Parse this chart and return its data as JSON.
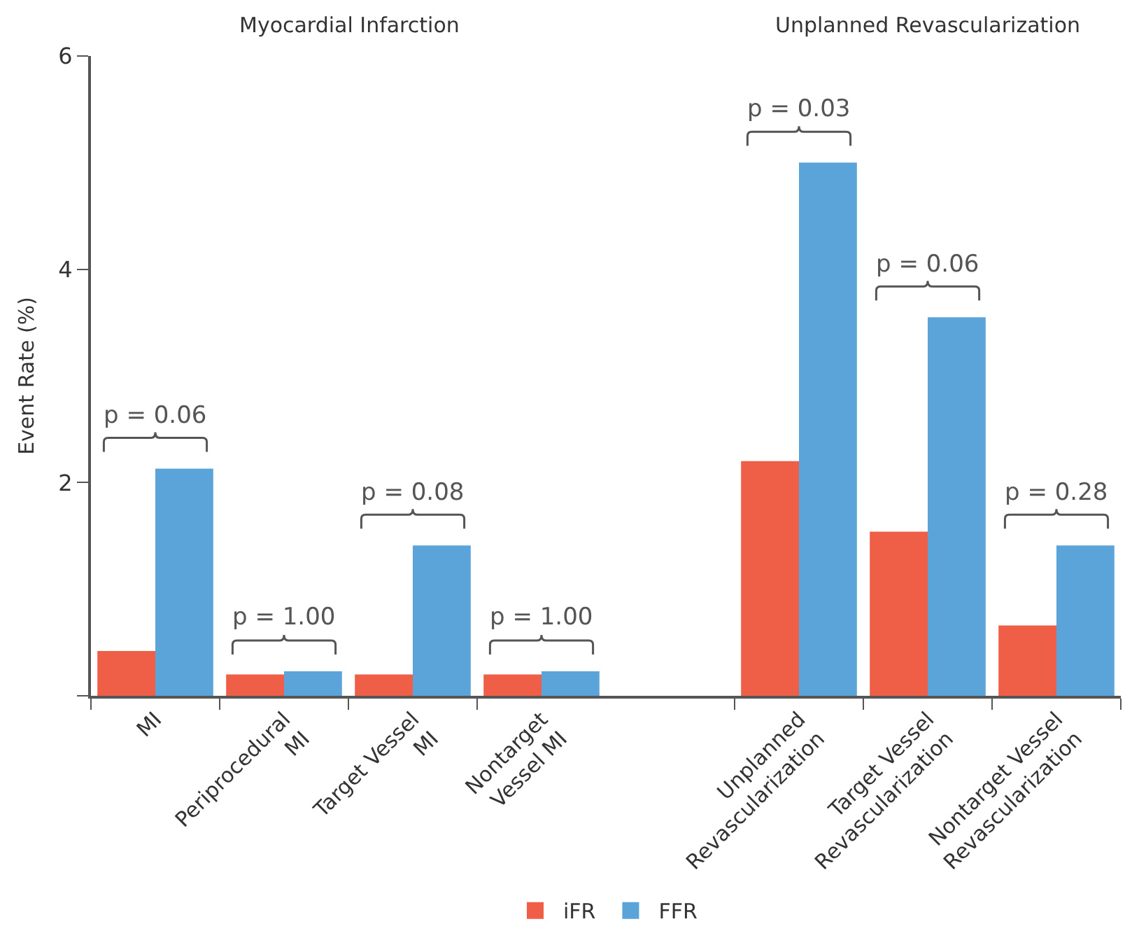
{
  "chart_data": {
    "type": "bar",
    "ylabel": "Event Rate (%)",
    "categories": [
      "MI",
      "Periprocedural\nMI",
      "Target Vessel\nMI",
      "Nontarget\nVessel MI",
      null,
      "Unplanned\nRevascularization",
      "Target Vessel\nRevascularization",
      "Nontarget Vessel\nRevascularization"
    ],
    "series": [
      {
        "name": "iFR",
        "color": "#ef5f48",
        "values": [
          0.42,
          0.2,
          0.2,
          0.2,
          null,
          2.2,
          1.54,
          0.66
        ]
      },
      {
        "name": "FFR",
        "color": "#5ba4d9",
        "values": [
          2.13,
          0.23,
          1.41,
          0.23,
          null,
          5.0,
          3.55,
          1.41
        ]
      }
    ],
    "ylim": [
      0,
      6
    ],
    "yticks": [
      {
        "value": 0,
        "label": null
      },
      2,
      4,
      6
    ],
    "legend": "bottom",
    "annotations": [
      "Myocardial Infarction",
      "Unplanned Revascularization",
      "p = 0.06",
      "p = 1.00",
      "p = 0.08",
      "p = 1.00",
      "p = 0.03",
      "p = 0.06",
      "p = 0.28"
    ]
  }
}
